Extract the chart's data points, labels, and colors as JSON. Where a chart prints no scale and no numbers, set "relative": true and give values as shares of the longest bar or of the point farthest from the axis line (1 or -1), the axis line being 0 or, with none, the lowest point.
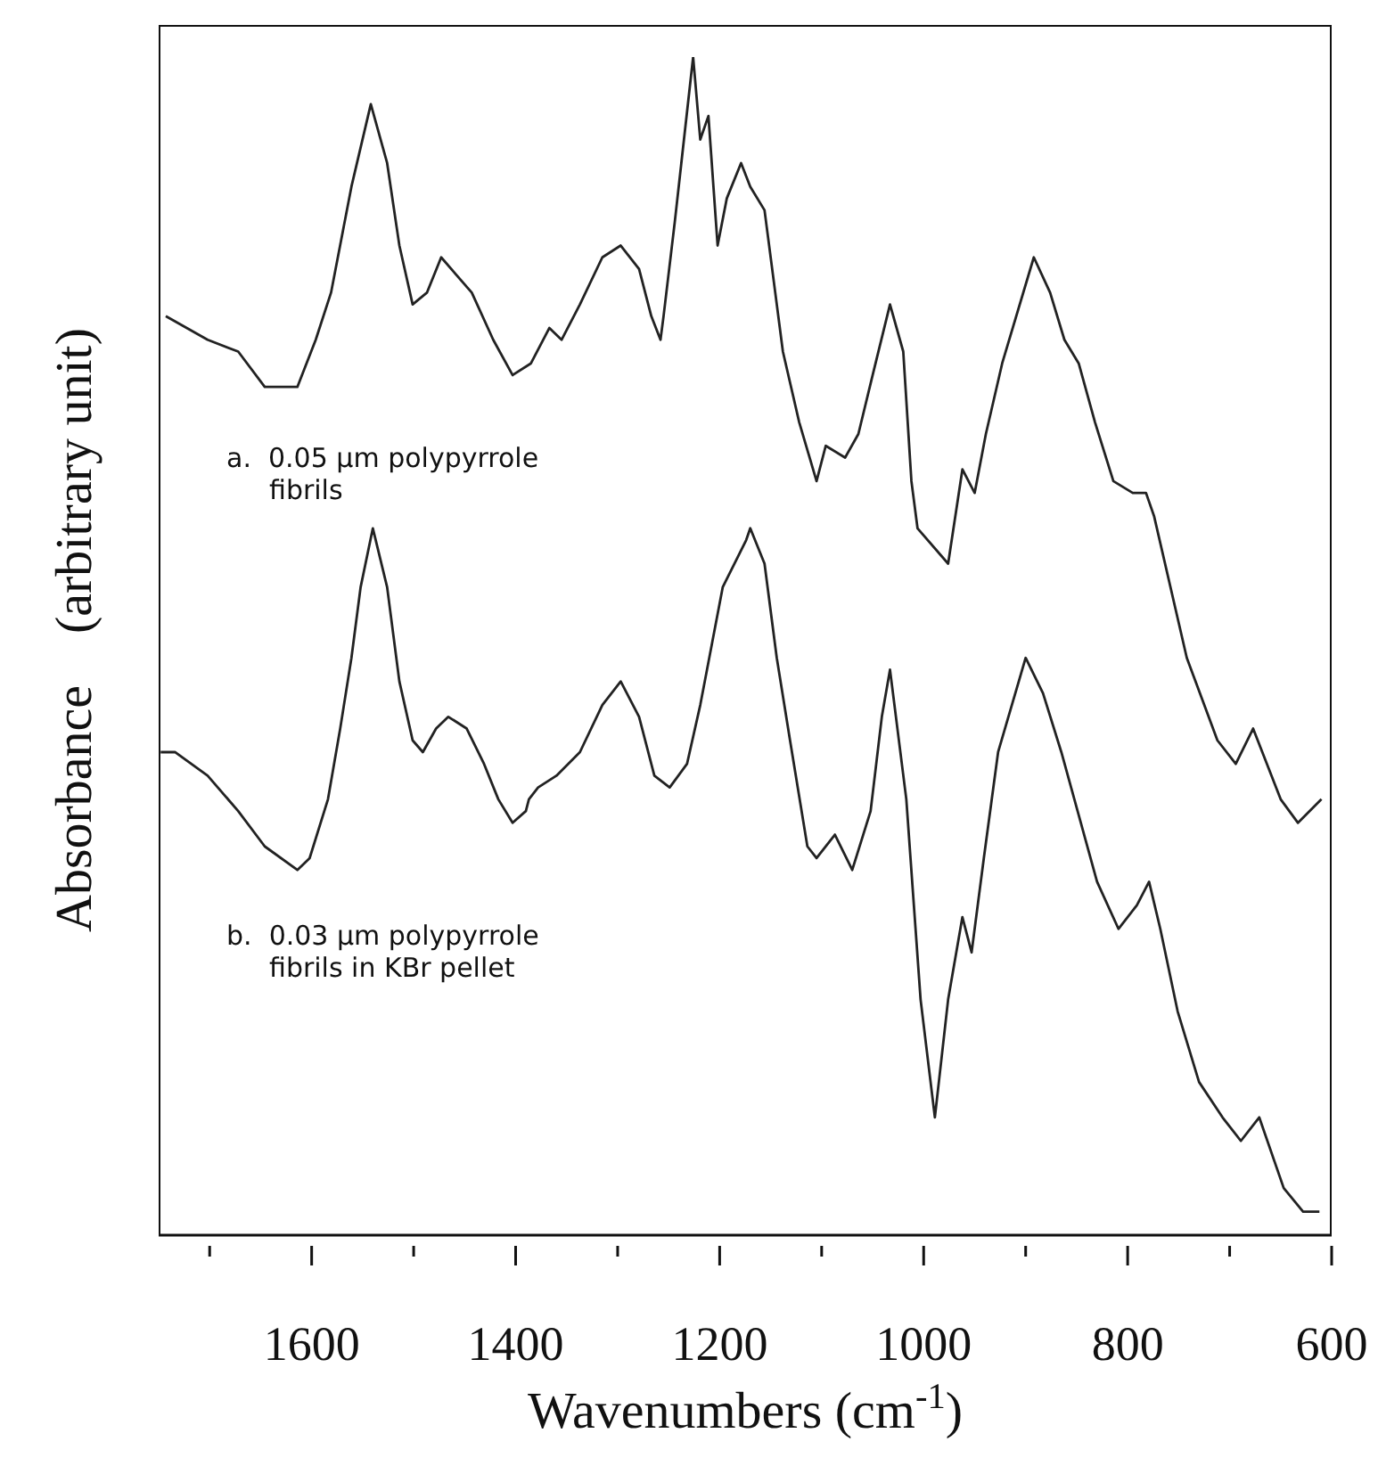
{
  "chart_data": {
    "type": "line",
    "relative": true,
    "xlabel": "Wavenumbers (cm$^{-1}$)",
    "ylabel": "Absorbance    (arbitrary unit)",
    "marker": "none",
    "line_style": "solid",
    "xlim": [
      1750,
      600
    ],
    "xticks": [
      {
        "value": 1700,
        "label": null
      },
      1600,
      {
        "value": 1500,
        "label": null
      },
      1400,
      {
        "value": 1300,
        "label": null
      },
      1200,
      {
        "value": 1100,
        "label": null
      },
      1000,
      {
        "value": 900,
        "label": null
      },
      800,
      {
        "value": 700,
        "label": null
      },
      600
    ],
    "annotations": [
      "a.  0.05 µm polypyrrole\nfibrils",
      "b.  0.03 µm polypyrrole\nfibrils in KBr pellet"
    ],
    "series": [
      {
        "color": "#222222",
        "x": [
          1743,
          1702,
          1672,
          1646,
          1628,
          1614,
          1596,
          1581,
          1561,
          1542,
          1526,
          1514,
          1501,
          1487,
          1473,
          1443,
          1422,
          1403,
          1385,
          1367,
          1355,
          1337,
          1315,
          1297,
          1279,
          1267,
          1258,
          1255,
          1244,
          1226,
          1219,
          1211,
          1202,
          1193,
          1179,
          1170,
          1156,
          1147,
          1138,
          1122,
          1105,
          1096,
          1077,
          1064,
          1050,
          1033,
          1020,
          1012,
          1006,
          976,
          962,
          950,
          939,
          923,
          892,
          876,
          862,
          848,
          832,
          814,
          795,
          782,
          774,
          742,
          712,
          694,
          677,
          650,
          633,
          610
        ],
        "values": [
          0.78,
          0.76,
          0.75,
          0.72,
          0.72,
          0.72,
          0.76,
          0.8,
          0.89,
          0.96,
          0.91,
          0.84,
          0.79,
          0.8,
          0.83,
          0.8,
          0.76,
          0.73,
          0.74,
          0.77,
          0.76,
          0.79,
          0.83,
          0.84,
          0.82,
          0.78,
          0.76,
          0.78,
          0.86,
          1,
          0.93,
          0.95,
          0.84,
          0.88,
          0.91,
          0.89,
          0.87,
          0.81,
          0.75,
          0.69,
          0.64,
          0.67,
          0.66,
          0.68,
          0.73,
          0.79,
          0.75,
          0.64,
          0.6,
          0.57,
          0.65,
          0.63,
          0.68,
          0.74,
          0.83,
          0.8,
          0.76,
          0.74,
          0.69,
          0.64,
          0.63,
          0.63,
          0.61,
          0.49,
          0.42,
          0.4,
          0.43,
          0.37,
          0.35,
          0.37
        ]
      },
      {
        "color": "#222222",
        "x": [
          1748,
          1734,
          1702,
          1672,
          1646,
          1614,
          1602,
          1584,
          1572,
          1561,
          1552,
          1540,
          1526,
          1514,
          1501,
          1491,
          1478,
          1466,
          1448,
          1431,
          1417,
          1403,
          1390,
          1387,
          1378,
          1360,
          1337,
          1315,
          1297,
          1279,
          1264,
          1249,
          1232,
          1219,
          1197,
          1174,
          1170,
          1156,
          1144,
          1131,
          1114,
          1105,
          1087,
          1070,
          1052,
          1041,
          1033,
          1017,
          1003,
          989,
          976,
          962,
          953,
          941,
          927,
          900,
          883,
          865,
          830,
          809,
          791,
          779,
          768,
          751,
          730,
          707,
          689,
          671,
          647,
          628,
          612
        ],
        "values": [
          0.41,
          0.41,
          0.39,
          0.36,
          0.33,
          0.31,
          0.32,
          0.37,
          0.43,
          0.49,
          0.55,
          0.6,
          0.55,
          0.47,
          0.42,
          0.41,
          0.43,
          0.44,
          0.43,
          0.4,
          0.37,
          0.35,
          0.36,
          0.37,
          0.38,
          0.39,
          0.41,
          0.45,
          0.47,
          0.44,
          0.39,
          0.38,
          0.4,
          0.45,
          0.55,
          0.59,
          0.6,
          0.57,
          0.49,
          0.42,
          0.33,
          0.32,
          0.34,
          0.31,
          0.36,
          0.44,
          0.48,
          0.37,
          0.2,
          0.1,
          0.2,
          0.27,
          0.24,
          0.32,
          0.41,
          0.49,
          0.46,
          0.41,
          0.3,
          0.26,
          0.28,
          0.3,
          0.26,
          0.19,
          0.13,
          0.1,
          0.08,
          0.1,
          0.04,
          0.02,
          0.02
        ]
      }
    ]
  }
}
